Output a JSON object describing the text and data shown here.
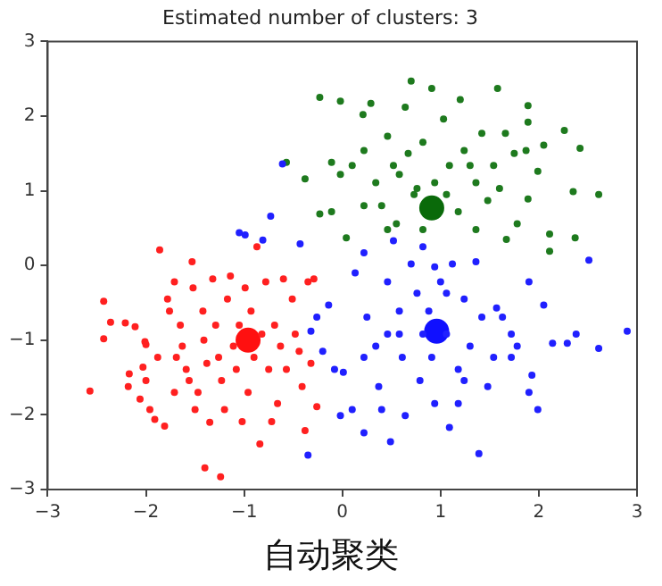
{
  "chart_data": {
    "type": "scatter",
    "title": "Estimated number of clusters: 3",
    "annotations": [
      "自动聚类"
    ],
    "xlim": [
      -3,
      3
    ],
    "ylim": [
      -3,
      3
    ],
    "xticks": [
      {
        "value": -3,
        "label": "−3"
      },
      {
        "value": -2,
        "label": "−2"
      },
      {
        "value": -1,
        "label": "−1"
      },
      0,
      1,
      2,
      3
    ],
    "yticks": [
      {
        "value": -3,
        "label": "−3"
      },
      {
        "value": -2,
        "label": "−2"
      },
      {
        "value": -1,
        "label": "−1"
      },
      0,
      1,
      2,
      3
    ],
    "grid": false,
    "legend": false,
    "marker": "circle",
    "series": [
      {
        "color": "#ff2020",
        "x": [
          -2.57,
          -2.43,
          -2.43,
          -2.36,
          -2.21,
          -2.11,
          -2.17,
          -2.18,
          -2.01,
          -2.0,
          -2.03,
          -2.0,
          -2.06,
          -1.96,
          -1.91,
          -1.81,
          -1.86,
          -1.78,
          -1.76,
          -1.71,
          -1.69,
          -1.65,
          -1.63,
          -1.59,
          -1.56,
          -1.53,
          -1.52,
          -1.5,
          -1.47,
          -1.42,
          -1.41,
          -1.38,
          -1.35,
          -1.32,
          -1.29,
          -1.26,
          -1.23,
          -1.2,
          -1.17,
          -1.14,
          -1.11,
          -1.08,
          -1.05,
          -1.02,
          -0.99,
          -0.96,
          -0.93,
          -0.9,
          -0.87,
          -0.84,
          -0.82,
          -0.78,
          -0.75,
          -0.72,
          -0.69,
          -0.66,
          -0.63,
          -0.6,
          -0.57,
          -0.51,
          -0.48,
          -0.44,
          -0.41,
          -0.38,
          -0.35,
          -0.32,
          -0.29,
          -0.26,
          -1.4,
          -1.24,
          -1.71,
          -1.88
        ],
        "values": [
          -1.68,
          -0.48,
          -0.98,
          -0.76,
          -0.77,
          -0.82,
          -1.45,
          -1.62,
          -1.02,
          -1.06,
          -1.36,
          -1.54,
          -1.79,
          -1.93,
          -2.06,
          -2.15,
          0.21,
          -0.45,
          -0.61,
          -0.22,
          -1.23,
          -0.8,
          -1.08,
          -1.39,
          -1.54,
          0.05,
          -0.3,
          -1.93,
          -1.7,
          -0.61,
          -1.0,
          -1.31,
          -2.1,
          -0.18,
          -0.8,
          -1.23,
          -1.54,
          -1.93,
          -0.45,
          -0.14,
          -1.08,
          -1.39,
          -0.8,
          -2.09,
          -0.3,
          -1.7,
          -0.61,
          -1.23,
          0.25,
          -2.39,
          -0.92,
          -0.22,
          -1.39,
          -2.09,
          -0.8,
          -1.85,
          -1.08,
          -0.18,
          -1.39,
          -0.45,
          -0.92,
          -1.15,
          -1.62,
          -2.21,
          -0.22,
          -1.31,
          -0.18,
          -1.89,
          -2.71,
          -2.83,
          -1.7,
          -1.23
        ]
      },
      {
        "color": "#2020ff",
        "x": [
          -1.05,
          -0.99,
          -0.81,
          -0.73,
          -0.61,
          -0.43,
          -0.32,
          -0.26,
          -0.2,
          -0.14,
          -0.35,
          -0.08,
          0.01,
          0.1,
          0.13,
          0.22,
          0.25,
          0.34,
          0.37,
          0.46,
          0.49,
          0.52,
          0.58,
          0.61,
          0.64,
          0.7,
          0.76,
          0.79,
          0.82,
          0.88,
          0.91,
          0.94,
          1.0,
          1.06,
          1.09,
          1.12,
          1.18,
          1.24,
          1.3,
          1.36,
          1.39,
          1.42,
          1.48,
          1.54,
          1.57,
          1.63,
          1.72,
          1.78,
          1.9,
          1.93,
          1.99,
          2.05,
          2.14,
          2.29,
          2.38,
          2.51,
          2.61,
          2.9,
          1.9,
          0.22,
          -0.02,
          0.4,
          0.82,
          0.58,
          1.18,
          0.94,
          1.72,
          0.22,
          0.46,
          1.24,
          1.06
        ],
        "values": [
          0.44,
          0.41,
          0.34,
          0.66,
          1.36,
          0.29,
          -0.88,
          -0.69,
          -1.15,
          -0.53,
          -2.54,
          -1.39,
          -1.43,
          -1.93,
          -0.1,
          0.17,
          -0.69,
          -1.08,
          -1.62,
          -0.22,
          -2.36,
          0.33,
          -0.61,
          -1.23,
          -2.01,
          0.02,
          -0.37,
          -1.54,
          0.25,
          -0.61,
          -1.23,
          -1.85,
          -0.22,
          -0.92,
          -2.17,
          0.02,
          -1.39,
          -0.45,
          -1.08,
          0.05,
          -2.52,
          -0.69,
          -1.62,
          -1.23,
          -0.57,
          -0.69,
          -0.92,
          -1.08,
          -0.22,
          -1.47,
          -1.93,
          -0.53,
          -1.04,
          -1.04,
          -0.92,
          0.07,
          -1.11,
          -0.88,
          -1.7,
          -2.24,
          -2.01,
          -1.93,
          -0.92,
          -0.92,
          -1.85,
          -0.02,
          -1.23,
          -1.23,
          -0.92,
          -1.54,
          -0.37
        ]
      },
      {
        "color": "#1e7a1e",
        "x": [
          -0.23,
          -0.02,
          0.21,
          0.29,
          0.7,
          0.91,
          1.2,
          1.58,
          1.89,
          2.26,
          2.42,
          2.61,
          2.35,
          2.37,
          2.11,
          2.11,
          1.67,
          1.89,
          -0.38,
          -0.57,
          -0.23,
          -0.11,
          0.04,
          0.1,
          0.22,
          0.34,
          0.4,
          0.46,
          0.55,
          0.58,
          0.67,
          0.73,
          0.82,
          0.82,
          0.94,
          1.03,
          1.09,
          1.18,
          1.24,
          1.36,
          1.42,
          1.48,
          1.54,
          1.66,
          1.75,
          1.78,
          1.87,
          1.99,
          2.05,
          1.36,
          0.46,
          0.64,
          0.76,
          0.52,
          1.06,
          0.22,
          -0.02,
          1.6,
          1.3,
          1.89,
          -0.11
        ],
        "values": [
          2.25,
          2.2,
          2.02,
          2.17,
          2.47,
          2.37,
          2.22,
          2.37,
          2.14,
          1.81,
          1.57,
          0.95,
          0.99,
          0.37,
          0.42,
          0.19,
          0.35,
          0.89,
          1.16,
          1.38,
          0.69,
          0.72,
          0.37,
          1.34,
          1.54,
          1.11,
          0.8,
          1.73,
          0.56,
          1.22,
          1.5,
          0.95,
          1.65,
          0.48,
          1.11,
          1.96,
          1.34,
          0.72,
          1.54,
          1.11,
          1.77,
          0.87,
          1.34,
          1.77,
          1.5,
          0.56,
          1.54,
          1.26,
          1.61,
          0.48,
          0.48,
          2.12,
          1.03,
          1.34,
          0.95,
          0.8,
          1.22,
          1.03,
          1.34,
          1.92,
          1.38
        ]
      },
      {
        "type": "bubble",
        "colors": [
          "#ff1010",
          "#1010ff",
          "#0a6a0a"
        ],
        "x": [
          -0.96,
          0.96,
          0.91
        ],
        "values": [
          -1.0,
          -0.88,
          0.77
        ],
        "sizes": [
          1,
          1,
          1
        ]
      }
    ]
  }
}
